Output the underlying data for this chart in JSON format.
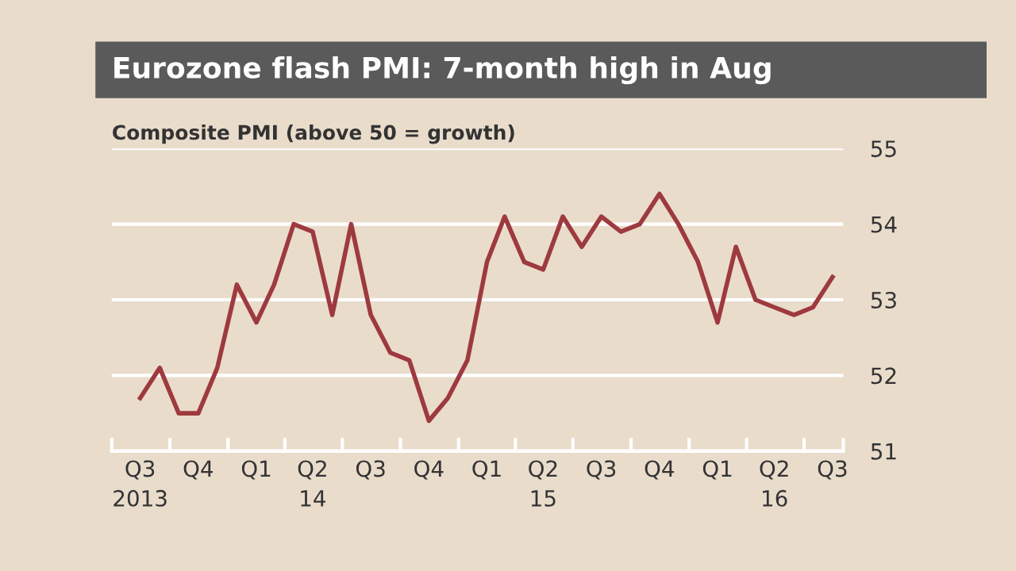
{
  "chart_data": {
    "type": "line",
    "title": "Eurozone flash PMI: 7-month high in Aug",
    "subtitle": "Composite PMI (above 50 = growth)",
    "x": [
      "2013-08-15",
      "2013-09-15",
      "2013-10-15",
      "2013-11-15",
      "2013-12-15",
      "2014-01-15",
      "2014-02-15",
      "2014-03-15",
      "2014-04-15",
      "2014-05-15",
      "2014-06-15",
      "2014-07-15",
      "2014-08-15",
      "2014-09-15",
      "2014-10-15",
      "2014-11-15",
      "2014-12-15",
      "2015-01-15",
      "2015-02-15",
      "2015-03-15",
      "2015-04-15",
      "2015-05-15",
      "2015-06-15",
      "2015-07-15",
      "2015-08-15",
      "2015-09-15",
      "2015-10-15",
      "2015-11-15",
      "2015-12-15",
      "2016-01-15",
      "2016-02-15",
      "2016-03-15",
      "2016-04-15",
      "2016-05-15",
      "2016-06-15",
      "2016-07-15",
      "2016-08-15"
    ],
    "series": [
      {
        "color": "#9e3a3f",
        "values": [
          51.7,
          52.1,
          51.5,
          51.5,
          52.1,
          53.2,
          52.7,
          53.2,
          54.0,
          53.9,
          52.8,
          54.0,
          52.8,
          52.3,
          52.2,
          51.4,
          51.7,
          52.2,
          53.5,
          54.1,
          53.5,
          53.4,
          54.1,
          53.7,
          54.1,
          53.9,
          54.0,
          54.4,
          54.0,
          53.5,
          52.7,
          53.7,
          53.0,
          52.9,
          52.8,
          52.9,
          53.3
        ]
      }
    ],
    "xlim": [
      "2013-07-01",
      "2016-09-01"
    ],
    "xticks": [
      {
        "value": "2013-07-01",
        "label": null
      },
      {
        "value": "2013-08-15",
        "label": "Q3\n2013"
      },
      {
        "value": "2013-10-01",
        "label": null
      },
      {
        "value": "2013-11-15",
        "label": "Q4"
      },
      {
        "value": "2014-01-01",
        "label": null
      },
      {
        "value": "2014-02-15",
        "label": "Q1"
      },
      {
        "value": "2014-04-01",
        "label": null
      },
      {
        "value": "2014-05-15",
        "label": "Q2\n14"
      },
      {
        "value": "2014-07-01",
        "label": null
      },
      {
        "value": "2014-08-15",
        "label": "Q3"
      },
      {
        "value": "2014-10-01",
        "label": null
      },
      {
        "value": "2014-11-15",
        "label": "Q4"
      },
      {
        "value": "2015-01-01",
        "label": null
      },
      {
        "value": "2015-02-15",
        "label": "Q1"
      },
      {
        "value": "2015-04-01",
        "label": null
      },
      {
        "value": "2015-05-15",
        "label": "Q2\n15"
      },
      {
        "value": "2015-07-01",
        "label": null
      },
      {
        "value": "2015-08-15",
        "label": "Q3"
      },
      {
        "value": "2015-10-01",
        "label": null
      },
      {
        "value": "2015-11-15",
        "label": "Q4"
      },
      {
        "value": "2016-01-01",
        "label": null
      },
      {
        "value": "2016-02-15",
        "label": "Q1"
      },
      {
        "value": "2016-04-01",
        "label": null
      },
      {
        "value": "2016-05-15",
        "label": "Q2\n16"
      },
      {
        "value": "2016-07-01",
        "label": null
      },
      {
        "value": "2016-08-15",
        "label": "Q3"
      },
      {
        "value": "2016-09-01",
        "label": null
      }
    ],
    "ylim": [
      51,
      55
    ],
    "yticks": [
      51,
      52,
      53,
      54,
      55
    ],
    "grid": "y",
    "legend": false,
    "marker": "none",
    "line_style": "solid"
  }
}
